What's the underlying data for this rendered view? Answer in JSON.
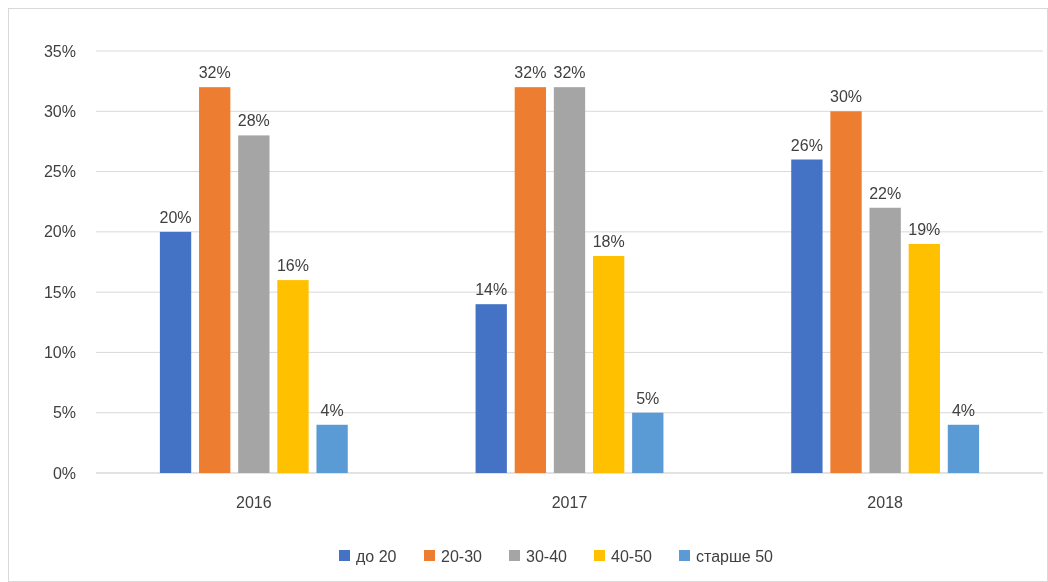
{
  "chart_data": {
    "type": "bar",
    "categories": [
      "2016",
      "2017",
      "2018"
    ],
    "series": [
      {
        "name": "до 20",
        "color": "#4472c4",
        "values": [
          20,
          14,
          26
        ],
        "value_labels": [
          "20%",
          "14%",
          "26%"
        ]
      },
      {
        "name": "20-30",
        "color": "#ed7d31",
        "values": [
          32,
          32,
          30
        ],
        "value_labels": [
          "32%",
          "32%",
          "30%"
        ]
      },
      {
        "name": "30-40",
        "color": "#a5a5a5",
        "values": [
          28,
          32,
          22
        ],
        "value_labels": [
          "28%",
          "32%",
          "22%"
        ]
      },
      {
        "name": "40-50",
        "color": "#ffc000",
        "values": [
          16,
          18,
          19
        ],
        "value_labels": [
          "16%",
          "18%",
          "19%"
        ]
      },
      {
        "name": "старше 50",
        "color": "#5b9bd5",
        "values": [
          4,
          5,
          4
        ],
        "value_labels": [
          "4%",
          "5%",
          "4%"
        ]
      }
    ],
    "ylim": [
      0,
      35
    ],
    "yticks": [
      {
        "value": 0,
        "label": "0%"
      },
      {
        "value": 5,
        "label": "5%"
      },
      {
        "value": 10,
        "label": "10%"
      },
      {
        "value": 15,
        "label": "15%"
      },
      {
        "value": 20,
        "label": "20%"
      },
      {
        "value": 25,
        "label": "25%"
      },
      {
        "value": 30,
        "label": "30%"
      },
      {
        "value": 35,
        "label": "35%"
      }
    ],
    "grid": "y",
    "legend": "bottom"
  }
}
